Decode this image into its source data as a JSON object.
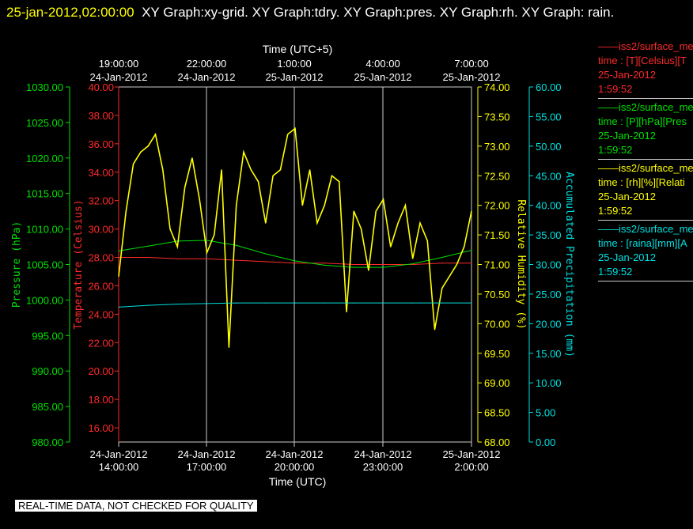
{
  "title": {
    "timestamp": "25-jan-2012,02:00:00",
    "graphs": "XY Graph:xy-grid.  XY Graph:tdry.  XY Graph:pres.  XY Graph:rh.  XY Graph: rain."
  },
  "legend": [
    {
      "name": "iss2/surface_me",
      "line1": "time : [T][Celsius][T",
      "date": "25-Jan-2012",
      "time": "1:59:52",
      "color": "#ff2a2a"
    },
    {
      "name": "iss2/surface_me",
      "line1": "time : [P][hPa][Pres",
      "date": "25-Jan-2012",
      "time": "1:59:52",
      "color": "#00e000"
    },
    {
      "name": "iss2/surface_me",
      "line1": "time : [rh][%][Relati",
      "date": "25-Jan-2012",
      "time": "1:59:52",
      "color": "#ffff00"
    },
    {
      "name": "iss2/surface_me",
      "line1": "time : [raina][mm][A",
      "date": "25-Jan-2012",
      "time": "1:59:52",
      "color": "#00e0e0"
    }
  ],
  "disclaimer": "REAL-TIME DATA, NOT CHECKED FOR QUALITY",
  "chart_data": {
    "type": "line",
    "top_axis": {
      "label": "Time (UTC+5)",
      "ticks": [
        [
          "19:00:00",
          "24-Jan-2012"
        ],
        [
          "22:00:00",
          "24-Jan-2012"
        ],
        [
          "1:00:00",
          "25-Jan-2012"
        ],
        [
          "4:00:00",
          "25-Jan-2012"
        ],
        [
          "7:00:00",
          "25-Jan-2012"
        ]
      ]
    },
    "bottom_axis": {
      "label": "Time (UTC)",
      "ticks": [
        [
          "24-Jan-2012",
          "14:00:00"
        ],
        [
          "24-Jan-2012",
          "17:00:00"
        ],
        [
          "24-Jan-2012",
          "20:00:00"
        ],
        [
          "24-Jan-2012",
          "23:00:00"
        ],
        [
          "25-Jan-2012",
          "2:00:00"
        ]
      ],
      "xlim": [
        0,
        12
      ]
    },
    "grid": true,
    "axes": {
      "pressure": {
        "label": "Pressure (hPa)",
        "ylim": [
          980,
          1030
        ],
        "ticks": [
          "980.00",
          "985.00",
          "990.00",
          "995.00",
          "1000.00",
          "1005.00",
          "1010.00",
          "1015.00",
          "1020.00",
          "1025.00",
          "1030.00"
        ],
        "color": "#00e000"
      },
      "temperature": {
        "label": "Temperature (Celsius)",
        "ylim": [
          15,
          40
        ],
        "ticks": [
          "16.00",
          "18.00",
          "20.00",
          "22.00",
          "24.00",
          "26.00",
          "28.00",
          "30.00",
          "32.00",
          "34.00",
          "36.00",
          "38.00",
          "40.00"
        ],
        "color": "#ff2a2a"
      },
      "humidity": {
        "label": "Relative Humidity (%)",
        "ylim": [
          68,
          74
        ],
        "ticks": [
          "68.00",
          "68.50",
          "69.00",
          "69.50",
          "70.00",
          "70.50",
          "71.00",
          "71.50",
          "72.00",
          "72.50",
          "73.00",
          "73.50",
          "74.00"
        ],
        "color": "#ffff00"
      },
      "rain": {
        "label": "Accumulated Precipitation (mm)",
        "ylim": [
          0,
          60
        ],
        "ticks": [
          "0.00",
          "5.00",
          "10.00",
          "15.00",
          "20.00",
          "25.00",
          "30.00",
          "35.00",
          "40.00",
          "45.00",
          "50.00",
          "55.00",
          "60.00"
        ],
        "color": "#00e0e0"
      }
    },
    "series": [
      {
        "name": "T",
        "axis": "temperature",
        "color": "#ff2a2a",
        "x": [
          0,
          1,
          2,
          3,
          4,
          5,
          6,
          7,
          8,
          9,
          10,
          11,
          12
        ],
        "y": [
          28.0,
          28.0,
          27.9,
          27.9,
          27.8,
          27.7,
          27.6,
          27.6,
          27.5,
          27.5,
          27.5,
          27.6,
          27.6
        ]
      },
      {
        "name": "P",
        "axis": "pressure",
        "color": "#00e000",
        "x": [
          0,
          1,
          2,
          3,
          4,
          5,
          6,
          7,
          8,
          9,
          10,
          11,
          12
        ],
        "y": [
          1006.9,
          1007.6,
          1008.3,
          1008.4,
          1007.7,
          1006.5,
          1005.5,
          1004.9,
          1004.6,
          1004.6,
          1005.1,
          1006.0,
          1007.0
        ]
      },
      {
        "name": "rh",
        "axis": "humidity",
        "color": "#ffff00",
        "x": [
          0,
          0.25,
          0.5,
          0.75,
          1,
          1.25,
          1.5,
          1.75,
          2,
          2.25,
          2.5,
          2.75,
          3,
          3.25,
          3.5,
          3.75,
          4,
          4.25,
          4.5,
          4.75,
          5,
          5.25,
          5.5,
          5.75,
          6,
          6.25,
          6.5,
          6.75,
          7,
          7.25,
          7.5,
          7.75,
          8,
          8.25,
          8.5,
          8.75,
          9,
          9.25,
          9.5,
          9.75,
          10,
          10.25,
          10.5,
          10.75,
          11,
          11.25,
          11.5,
          11.75,
          12
        ],
        "y": [
          70.8,
          71.9,
          72.7,
          72.9,
          73.0,
          73.2,
          72.6,
          71.6,
          71.3,
          72.3,
          72.8,
          72.1,
          71.2,
          71.5,
          72.6,
          69.6,
          72.0,
          72.9,
          72.6,
          72.4,
          71.7,
          72.5,
          72.6,
          73.2,
          73.3,
          72.0,
          72.6,
          71.7,
          72.0,
          72.5,
          72.4,
          70.2,
          71.9,
          71.6,
          70.9,
          71.9,
          72.1,
          71.3,
          71.7,
          72.0,
          71.1,
          71.7,
          71.4,
          69.9,
          70.6,
          70.8,
          71.0,
          71.3,
          71.9
        ]
      },
      {
        "name": "raina",
        "axis": "rain",
        "color": "#00e0e0",
        "x": [
          0,
          1,
          2,
          3,
          4,
          5,
          6,
          7,
          8,
          9,
          10,
          11,
          12
        ],
        "y": [
          22.8,
          23.1,
          23.3,
          23.4,
          23.5,
          23.5,
          23.5,
          23.5,
          23.5,
          23.5,
          23.5,
          23.5,
          23.5
        ]
      }
    ]
  }
}
